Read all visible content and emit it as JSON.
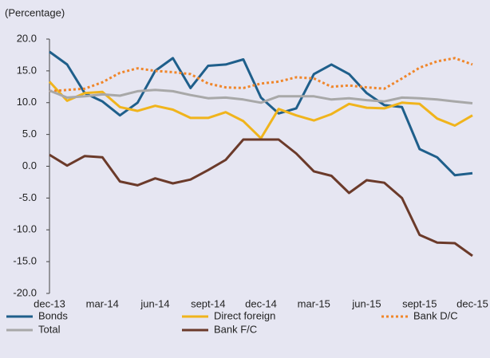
{
  "chart_data": {
    "type": "line",
    "y_label": "(Percentage)",
    "categories": [
      "dec-13",
      null,
      null,
      "mar-14",
      null,
      null,
      "jun-14",
      null,
      null,
      "sept-14",
      null,
      null,
      "dec-14",
      null,
      null,
      "mar-15",
      null,
      null,
      "jun-15",
      null,
      null,
      "sept-15",
      null,
      null,
      "dec-15"
    ],
    "series": [
      {
        "name": "Bonds",
        "color": "#1f5f8b",
        "linestyle": "solid",
        "values": [
          18.0,
          16.0,
          11.5,
          10.2,
          8.0,
          10.0,
          15.0,
          17.0,
          12.3,
          15.8,
          16.0,
          16.8,
          10.8,
          8.3,
          9.1,
          14.5,
          16.0,
          14.5,
          11.5,
          9.6,
          9.3,
          2.7,
          1.4,
          -1.4,
          -1.1
        ]
      },
      {
        "name": "Direct foreign",
        "color": "#f0b41c",
        "linestyle": "solid",
        "values": [
          13.3,
          10.3,
          11.5,
          11.7,
          9.3,
          8.7,
          9.5,
          8.9,
          7.6,
          7.6,
          8.5,
          7.1,
          4.4,
          9.0,
          8.0,
          7.2,
          8.2,
          9.8,
          9.2,
          9.1,
          10.0,
          9.8,
          7.5,
          6.4,
          8.0
        ]
      },
      {
        "name": "Bank D/C",
        "color": "#f0862a",
        "linestyle": "dotted",
        "values": [
          11.8,
          12.0,
          12.2,
          13.2,
          14.7,
          15.4,
          15.0,
          14.8,
          14.5,
          13.0,
          12.4,
          12.3,
          13.0,
          13.3,
          14.0,
          13.8,
          12.5,
          12.7,
          12.4,
          12.2,
          13.8,
          15.5,
          16.5,
          17.0,
          16.0
        ]
      },
      {
        "name": "Total",
        "color": "#a8a8a8",
        "linestyle": "solid",
        "values": [
          11.9,
          10.8,
          11.0,
          11.3,
          11.1,
          11.8,
          12.0,
          11.8,
          11.2,
          10.7,
          10.8,
          10.5,
          10.0,
          11.0,
          11.0,
          11.0,
          10.5,
          10.7,
          10.4,
          10.2,
          10.8,
          10.7,
          10.5,
          10.2,
          9.9
        ]
      },
      {
        "name": "Bank F/C",
        "color": "#6b3a2a",
        "linestyle": "solid",
        "values": [
          1.8,
          0.1,
          1.6,
          1.4,
          -2.4,
          -3.0,
          -1.9,
          -2.7,
          -2.1,
          -0.6,
          1.0,
          4.2,
          4.2,
          4.2,
          2.0,
          -0.8,
          -1.5,
          -4.2,
          -2.2,
          -2.6,
          -5.0,
          -10.8,
          -12.0,
          -12.1,
          -14.1
        ]
      }
    ],
    "ylim": [
      -20,
      20
    ],
    "yticks": [
      {
        "value": 20,
        "label": "20.0"
      },
      {
        "value": 15,
        "label": "15.0"
      },
      {
        "value": 10,
        "label": "10.0"
      },
      {
        "value": 5,
        "label": "5.0"
      },
      {
        "value": 0,
        "label": "0.0"
      },
      {
        "value": -5,
        "label": "-5.0"
      },
      {
        "value": -10,
        "label": "-10.0"
      },
      {
        "value": -15,
        "label": "-15.0"
      },
      {
        "value": -20,
        "label": "-20.0"
      }
    ],
    "grid": false
  }
}
